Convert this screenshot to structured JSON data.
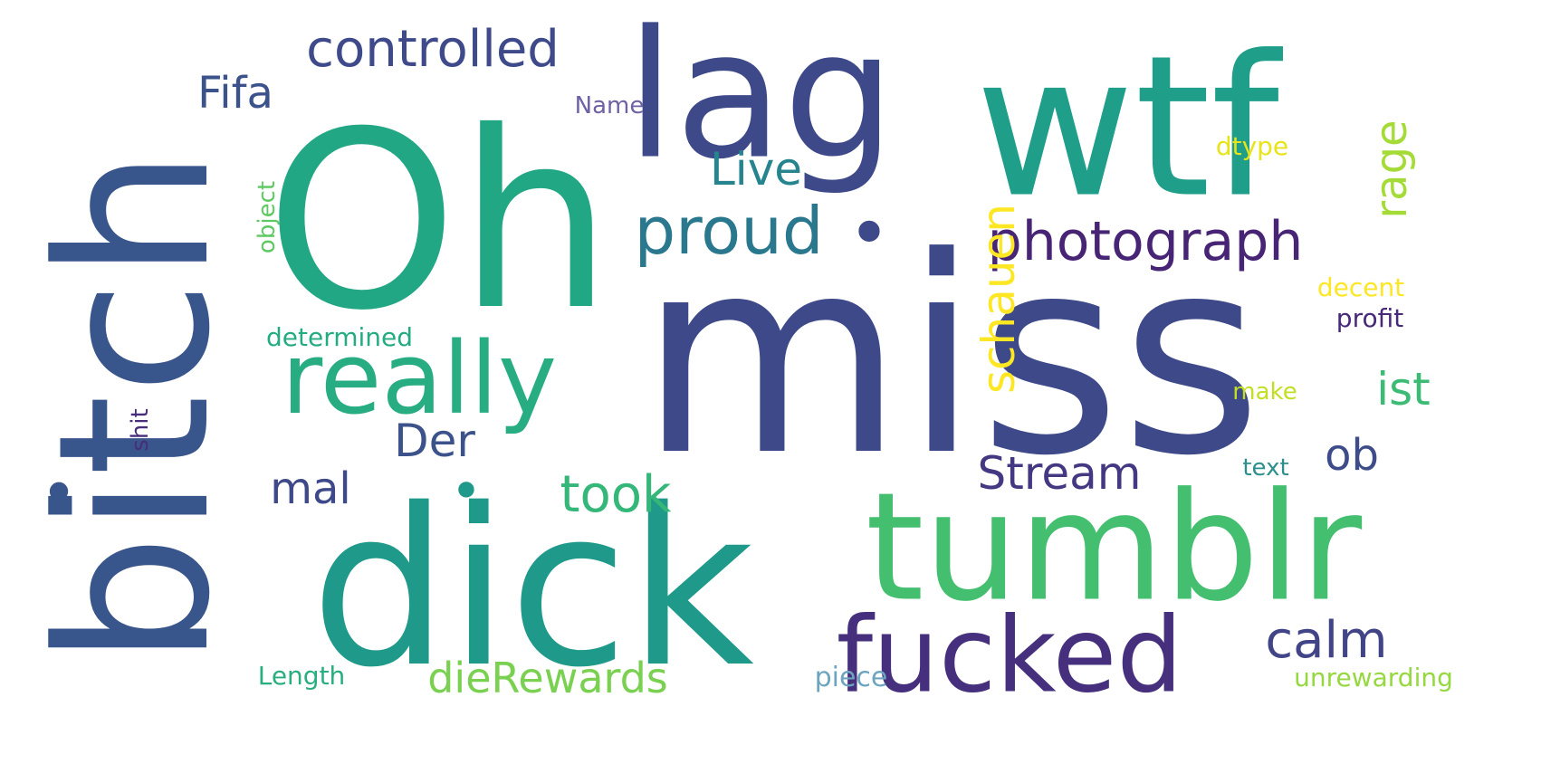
{
  "words": [
    {
      "key": "oh",
      "text": "Oh",
      "color": "#22a784"
    },
    {
      "key": "miss",
      "text": "miss",
      "color": "#3e4989"
    },
    {
      "key": "dick",
      "text": "dick",
      "color": "#1f9a8a"
    },
    {
      "key": "bitch",
      "text": "bitch",
      "color": "#39568c"
    },
    {
      "key": "wtf",
      "text": "wtf",
      "color": "#1f9e89"
    },
    {
      "key": "lag",
      "text": "lag",
      "color": "#3e4989"
    },
    {
      "key": "tumblr",
      "text": "tumblr",
      "color": "#44bf70"
    },
    {
      "key": "fucked",
      "text": "fucked",
      "color": "#46307e"
    },
    {
      "key": "really",
      "text": "really",
      "color": "#27ad81"
    },
    {
      "key": "controlled",
      "text": "controlled",
      "color": "#3e4a89"
    },
    {
      "key": "proud",
      "text": "proud",
      "color": "#2a788e"
    },
    {
      "key": "photograph",
      "text": "photograph",
      "color": "#482475"
    },
    {
      "key": "die_rewards",
      "text": "dieRewards",
      "color": "#7ad151"
    },
    {
      "key": "schauen",
      "text": "schauen",
      "color": "#fde725"
    },
    {
      "key": "stream",
      "text": "Stream",
      "color": "#453882"
    },
    {
      "key": "took",
      "text": "took",
      "color": "#35b779"
    },
    {
      "key": "calm",
      "text": "calm",
      "color": "#414487"
    },
    {
      "key": "fifa",
      "text": "Fifa",
      "color": "#3b528b"
    },
    {
      "key": "live",
      "text": "Live",
      "color": "#25848e"
    },
    {
      "key": "der",
      "text": "Der",
      "color": "#3b528b"
    },
    {
      "key": "mal",
      "text": "mal",
      "color": "#3e4989"
    },
    {
      "key": "ist",
      "text": "ist",
      "color": "#3cbb75"
    },
    {
      "key": "ob",
      "text": "ob",
      "color": "#3e4c8a"
    },
    {
      "key": "rage",
      "text": "rage",
      "color": "#a5db36"
    },
    {
      "key": "determined",
      "text": "determined",
      "color": "#25ab82"
    },
    {
      "key": "name",
      "text": "Name",
      "color": "#6f61a5"
    },
    {
      "key": "dtype",
      "text": "dtype",
      "color": "#e7e419"
    },
    {
      "key": "object",
      "text": "object",
      "color": "#5ec962"
    },
    {
      "key": "decent",
      "text": "decent",
      "color": "#fde725"
    },
    {
      "key": "profit",
      "text": "profit",
      "color": "#482878"
    },
    {
      "key": "make",
      "text": "make",
      "color": "#c2df23"
    },
    {
      "key": "shit",
      "text": "shit",
      "color": "#472d7b"
    },
    {
      "key": "text",
      "text": "text",
      "color": "#2c8f8c"
    },
    {
      "key": "length",
      "text": "Length",
      "color": "#29af7f"
    },
    {
      "key": "piece",
      "text": "piece",
      "color": "#6da5c0"
    },
    {
      "key": "unrewarding",
      "text": "unrewarding",
      "color": "#95d840"
    },
    {
      "key": "dot1",
      "text": "•",
      "color": "#3e4989"
    },
    {
      "key": "dot2",
      "text": "•",
      "color": "#39568c"
    },
    {
      "key": "dot3",
      "text": "•",
      "color": "#1f9a8a"
    }
  ]
}
